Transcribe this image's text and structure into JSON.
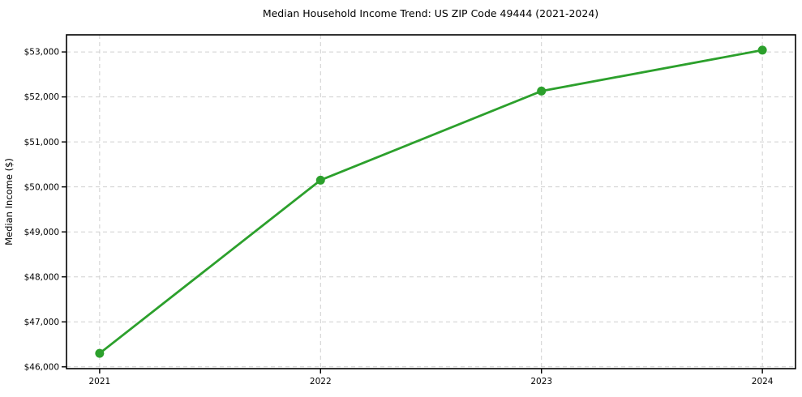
{
  "figure": {
    "title": "Median Household Income Trend: US ZIP Code 49444 (2021-2024)",
    "ylabel": "Median Income ($)"
  },
  "colors": {
    "line": "#2ca02c",
    "marker": "#2ca02c",
    "grid": "#cfcfcf",
    "spine": "#000000",
    "tick": "#000000",
    "text": "#000000",
    "background": "#ffffff"
  },
  "chart_data": {
    "type": "line",
    "title": "Median Household Income Trend: US ZIP Code 49444 (2021-2024)",
    "xlabel": "",
    "ylabel": "Median Income ($)",
    "x": [
      2021,
      2022,
      2023,
      2024
    ],
    "series": [
      {
        "name": "Median Household Income",
        "values": [
          46300,
          50150,
          52130,
          53040
        ]
      }
    ],
    "xtick_labels": [
      "2021",
      "2022",
      "2023",
      "2024"
    ],
    "ytick_values": [
      46000,
      47000,
      48000,
      49000,
      50000,
      51000,
      52000,
      53000
    ],
    "ytick_labels": [
      "$46,000",
      "$47,000",
      "$48,000",
      "$49,000",
      "$50,000",
      "$51,000",
      "$52,000",
      "$53,000"
    ],
    "xlim": [
      2020.85,
      2024.15
    ],
    "ylim": [
      45960,
      53380
    ],
    "grid": true,
    "grid_style": "dashed",
    "legend_position": "none",
    "marker": "circle"
  }
}
